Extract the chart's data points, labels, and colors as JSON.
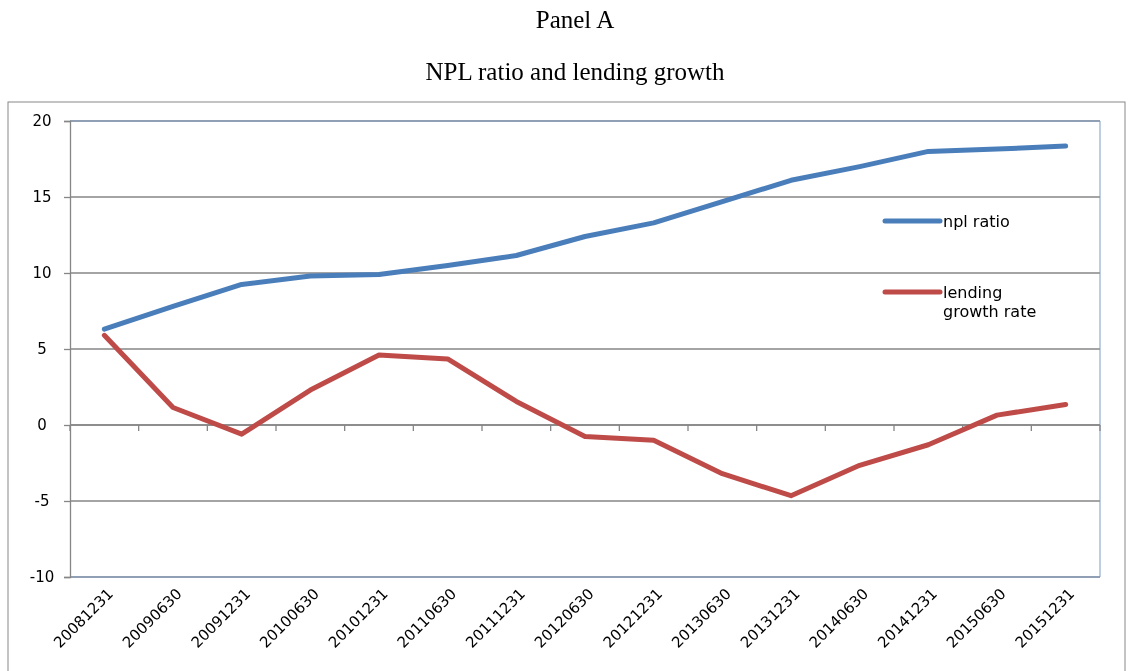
{
  "chart_data": {
    "type": "line",
    "title": "Panel A",
    "subtitle": "NPL ratio and lending growth",
    "categories": [
      "20081231",
      "20090630",
      "20091231",
      "20100630",
      "20101231",
      "20110630",
      "20111231",
      "20120630",
      "20121231",
      "20130630",
      "20131231",
      "20140630",
      "20141231",
      "20150630",
      "20151231"
    ],
    "series": [
      {
        "name": "npl ratio",
        "color": "#4a7ebb",
        "values": [
          6.3,
          7.8,
          9.25,
          9.8,
          9.9,
          10.5,
          11.15,
          12.4,
          13.3,
          14.7,
          16.1,
          17.0,
          18.0,
          18.15,
          18.35
        ]
      },
      {
        "name": "lending growth rate",
        "color": "#be4b48",
        "values": [
          5.9,
          1.15,
          -0.6,
          2.3,
          4.6,
          4.35,
          1.55,
          -0.75,
          -1.0,
          -3.2,
          -4.65,
          -2.65,
          -1.3,
          0.65,
          1.35
        ]
      }
    ],
    "ylim": [
      -10,
      20
    ],
    "yticks": [
      -10,
      -5,
      0,
      5,
      10,
      15,
      20
    ],
    "grid": "y",
    "legend": "right",
    "marker": "none",
    "line_style": "solid"
  }
}
